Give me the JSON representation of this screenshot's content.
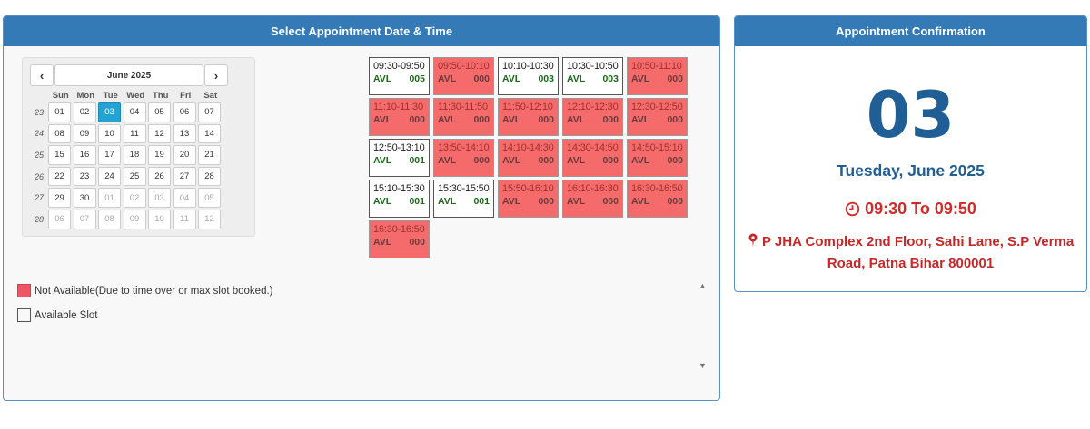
{
  "left_panel": {
    "title": "Select Appointment Date & Time"
  },
  "right_panel": {
    "title": "Appointment Confirmation"
  },
  "calendar": {
    "prev_label": "‹",
    "next_label": "›",
    "month_label": "June 2025",
    "weekdays": [
      "Sun",
      "Mon",
      "Tue",
      "Wed",
      "Thu",
      "Fri",
      "Sat"
    ],
    "weeks": [
      {
        "num": "23",
        "days": [
          [
            "01",
            ""
          ],
          [
            "02",
            ""
          ],
          [
            "03",
            "active"
          ],
          [
            "04",
            ""
          ],
          [
            "05",
            ""
          ],
          [
            "06",
            ""
          ],
          [
            "07",
            ""
          ]
        ]
      },
      {
        "num": "24",
        "days": [
          [
            "08",
            ""
          ],
          [
            "09",
            ""
          ],
          [
            "10",
            ""
          ],
          [
            "11",
            ""
          ],
          [
            "12",
            ""
          ],
          [
            "13",
            ""
          ],
          [
            "14",
            ""
          ]
        ]
      },
      {
        "num": "25",
        "days": [
          [
            "15",
            ""
          ],
          [
            "16",
            ""
          ],
          [
            "17",
            ""
          ],
          [
            "18",
            ""
          ],
          [
            "19",
            ""
          ],
          [
            "20",
            ""
          ],
          [
            "21",
            ""
          ]
        ]
      },
      {
        "num": "26",
        "days": [
          [
            "22",
            ""
          ],
          [
            "23",
            ""
          ],
          [
            "24",
            ""
          ],
          [
            "25",
            ""
          ],
          [
            "26",
            ""
          ],
          [
            "27",
            ""
          ],
          [
            "28",
            ""
          ]
        ]
      },
      {
        "num": "27",
        "days": [
          [
            "29",
            ""
          ],
          [
            "30",
            ""
          ],
          [
            "01",
            "muted"
          ],
          [
            "02",
            "muted"
          ],
          [
            "03",
            "muted"
          ],
          [
            "04",
            "muted"
          ],
          [
            "05",
            "muted"
          ]
        ]
      },
      {
        "num": "28",
        "days": [
          [
            "06",
            "muted"
          ],
          [
            "07",
            "muted"
          ],
          [
            "08",
            "muted"
          ],
          [
            "09",
            "muted"
          ],
          [
            "10",
            "muted"
          ],
          [
            "11",
            "muted"
          ],
          [
            "12",
            "muted"
          ]
        ]
      }
    ]
  },
  "slots": [
    {
      "time": "09:30-09:50",
      "avl": "AVL",
      "count": "005",
      "available": true
    },
    {
      "time": "09:50-10:10",
      "avl": "AVL",
      "count": "000",
      "available": false
    },
    {
      "time": "10:10-10:30",
      "avl": "AVL",
      "count": "003",
      "available": true
    },
    {
      "time": "10:30-10:50",
      "avl": "AVL",
      "count": "003",
      "available": true
    },
    {
      "time": "10:50-11:10",
      "avl": "AVL",
      "count": "000",
      "available": false
    },
    {
      "time": "11:10-11:30",
      "avl": "AVL",
      "count": "000",
      "available": false
    },
    {
      "time": "11:30-11:50",
      "avl": "AVL",
      "count": "000",
      "available": false
    },
    {
      "time": "11:50-12:10",
      "avl": "AVL",
      "count": "000",
      "available": false
    },
    {
      "time": "12:10-12:30",
      "avl": "AVL",
      "count": "000",
      "available": false
    },
    {
      "time": "12:30-12:50",
      "avl": "AVL",
      "count": "000",
      "available": false
    },
    {
      "time": "12:50-13:10",
      "avl": "AVL",
      "count": "001",
      "available": true
    },
    {
      "time": "13:50-14:10",
      "avl": "AVL",
      "count": "000",
      "available": false
    },
    {
      "time": "14:10-14:30",
      "avl": "AVL",
      "count": "000",
      "available": false
    },
    {
      "time": "14:30-14:50",
      "avl": "AVL",
      "count": "000",
      "available": false
    },
    {
      "time": "14:50-15:10",
      "avl": "AVL",
      "count": "000",
      "available": false
    },
    {
      "time": "15:10-15:30",
      "avl": "AVL",
      "count": "001",
      "available": true
    },
    {
      "time": "15:30-15:50",
      "avl": "AVL",
      "count": "001",
      "available": true
    },
    {
      "time": "15:50-16:10",
      "avl": "AVL",
      "count": "000",
      "available": false
    },
    {
      "time": "16:10-16:30",
      "avl": "AVL",
      "count": "000",
      "available": false
    },
    {
      "time": "16:30-16:50",
      "avl": "AVL",
      "count": "000",
      "available": false
    },
    {
      "time": "16:30-16:50",
      "avl": "AVL",
      "count": "000",
      "available": false
    }
  ],
  "legend": {
    "not_available": "Not Available(Due to time over or max slot booked.)",
    "available": "Available Slot"
  },
  "confirmation": {
    "day": "03",
    "date": "Tuesday, June 2025",
    "time": "09:30 To 09:50",
    "address": "P JHA Complex 2nd Floor, Sahi Lane, S.P Verma Road, Patna Bihar 800001"
  },
  "colors": {
    "header_blue": "#337ab7",
    "not_available_red": "#f56b6b",
    "available_green": "#1a6a1a",
    "selected_day": "#25a2d4"
  }
}
